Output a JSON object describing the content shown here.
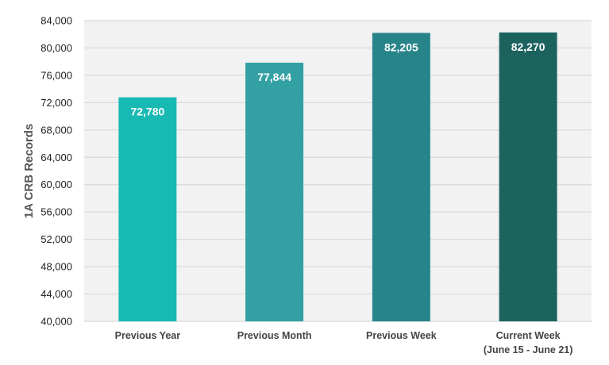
{
  "chart_data": {
    "type": "bar",
    "title": "",
    "xlabel": "",
    "ylabel": "1A CRB Records",
    "ylim": [
      40000,
      84000
    ],
    "yticks": [
      "40,000",
      "44,000",
      "48,000",
      "52,000",
      "56,000",
      "60,000",
      "64,000",
      "68,000",
      "72,000",
      "76,000",
      "80,000",
      "84,000"
    ],
    "categories": [
      [
        "Previous Year"
      ],
      [
        "Previous Month"
      ],
      [
        "Previous Week"
      ],
      [
        "Current Week",
        "(June 15 - June 21)"
      ]
    ],
    "values": [
      72780,
      77844,
      82205,
      82270
    ],
    "data_labels": [
      "72,780",
      "77,844",
      "82,205",
      "82,270"
    ],
    "colors": [
      "#17B9B2",
      "#33A0A3",
      "#27858A",
      "#1C6360"
    ],
    "grid": true,
    "plot_background": "#F2F2F2",
    "legend": "none"
  }
}
